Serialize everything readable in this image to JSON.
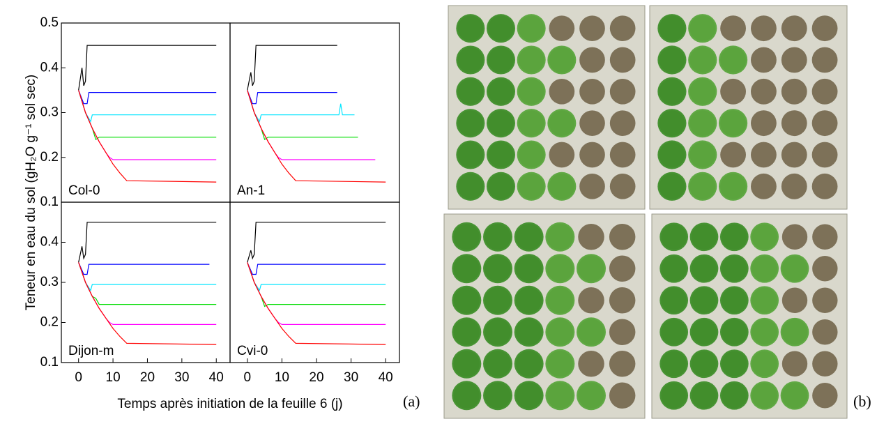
{
  "shared": {
    "ylabel": "Teneur  en eau du sol (gH₂O g⁻¹ sol sec)",
    "xlabel": "Temps après initiation de la feuille 6 (j)",
    "panel_a": "(a)",
    "panel_b": "(b)"
  },
  "chart_data": [
    {
      "type": "line",
      "title": "Col-0",
      "xlim": [
        -5,
        44
      ],
      "ylim": [
        0.1,
        0.5
      ],
      "yticks": [
        0.1,
        0.2,
        0.3,
        0.4,
        0.5
      ],
      "series": [
        {
          "color": "#000000",
          "x": [
            0,
            1,
            1.5,
            2,
            2.5,
            40
          ],
          "values": [
            0.35,
            0.4,
            0.36,
            0.37,
            0.45,
            0.45
          ]
        },
        {
          "color": "#0000ff",
          "x": [
            0,
            1.5,
            2.5,
            3,
            40
          ],
          "values": [
            0.35,
            0.32,
            0.32,
            0.345,
            0.345
          ]
        },
        {
          "color": "#00e5ff",
          "x": [
            0,
            2,
            3.5,
            4,
            40
          ],
          "values": [
            0.35,
            0.3,
            0.28,
            0.295,
            0.295
          ]
        },
        {
          "color": "#00dd00",
          "x": [
            0,
            2,
            4,
            5,
            6,
            40
          ],
          "values": [
            0.35,
            0.3,
            0.265,
            0.24,
            0.245,
            0.245
          ]
        },
        {
          "color": "#ff00ff",
          "x": [
            0,
            2,
            4,
            6,
            8,
            9,
            10,
            40
          ],
          "values": [
            0.35,
            0.3,
            0.265,
            0.235,
            0.21,
            0.2,
            0.195,
            0.195
          ]
        },
        {
          "color": "#ff0000",
          "x": [
            0,
            2,
            4,
            6,
            8,
            10,
            12,
            14,
            40
          ],
          "values": [
            0.35,
            0.3,
            0.265,
            0.235,
            0.21,
            0.185,
            0.165,
            0.148,
            0.145
          ]
        }
      ]
    },
    {
      "type": "line",
      "title": "An-1",
      "xlim": [
        -5,
        44
      ],
      "ylim": [
        0.1,
        0.5
      ],
      "series": [
        {
          "color": "#000000",
          "x": [
            0,
            1,
            1.5,
            2,
            2.5,
            26
          ],
          "values": [
            0.35,
            0.39,
            0.36,
            0.37,
            0.45,
            0.45
          ]
        },
        {
          "color": "#0000ff",
          "x": [
            0,
            1.5,
            2.5,
            3,
            26
          ],
          "values": [
            0.35,
            0.32,
            0.32,
            0.345,
            0.345
          ]
        },
        {
          "color": "#00e5ff",
          "x": [
            0,
            2,
            3.5,
            4,
            26.5,
            27,
            27.5,
            31
          ],
          "values": [
            0.35,
            0.3,
            0.28,
            0.295,
            0.295,
            0.32,
            0.295,
            0.295
          ]
        },
        {
          "color": "#00dd00",
          "x": [
            0,
            2,
            4,
            5,
            6,
            32
          ],
          "values": [
            0.35,
            0.3,
            0.265,
            0.24,
            0.245,
            0.245
          ]
        },
        {
          "color": "#ff00ff",
          "x": [
            0,
            2,
            4,
            6,
            8,
            9,
            10,
            37
          ],
          "values": [
            0.35,
            0.3,
            0.265,
            0.235,
            0.21,
            0.2,
            0.195,
            0.195
          ]
        },
        {
          "color": "#ff0000",
          "x": [
            0,
            2,
            4,
            6,
            8,
            10,
            12,
            14,
            40
          ],
          "values": [
            0.35,
            0.3,
            0.265,
            0.235,
            0.21,
            0.185,
            0.165,
            0.148,
            0.145
          ]
        }
      ]
    },
    {
      "type": "line",
      "title": "Dijon-m",
      "xlim": [
        -5,
        44
      ],
      "ylim": [
        0.1,
        0.5
      ],
      "yticks": [
        0.1,
        0.2,
        0.3,
        0.4
      ],
      "xticks": [
        0,
        10,
        20,
        30,
        40
      ],
      "series": [
        {
          "color": "#000000",
          "x": [
            0,
            1,
            1.5,
            2,
            2.5,
            40
          ],
          "values": [
            0.35,
            0.39,
            0.36,
            0.37,
            0.45,
            0.45
          ]
        },
        {
          "color": "#0000ff",
          "x": [
            0,
            1.5,
            2.5,
            3,
            38
          ],
          "values": [
            0.35,
            0.32,
            0.32,
            0.345,
            0.345
          ]
        },
        {
          "color": "#00e5ff",
          "x": [
            0,
            2,
            3.5,
            4,
            40
          ],
          "values": [
            0.35,
            0.3,
            0.28,
            0.295,
            0.295
          ]
        },
        {
          "color": "#00dd00",
          "x": [
            0,
            2,
            4,
            5,
            6,
            40
          ],
          "values": [
            0.35,
            0.3,
            0.265,
            0.26,
            0.245,
            0.245
          ]
        },
        {
          "color": "#ff00ff",
          "x": [
            0,
            2,
            4,
            6,
            8,
            9,
            10,
            40
          ],
          "values": [
            0.35,
            0.3,
            0.265,
            0.235,
            0.21,
            0.2,
            0.195,
            0.195
          ]
        },
        {
          "color": "#ff0000",
          "x": [
            0,
            2,
            4,
            6,
            8,
            10,
            12,
            14,
            40
          ],
          "values": [
            0.35,
            0.3,
            0.265,
            0.235,
            0.21,
            0.185,
            0.165,
            0.148,
            0.145
          ]
        }
      ]
    },
    {
      "type": "line",
      "title": "Cvi-0",
      "xlim": [
        -5,
        44
      ],
      "ylim": [
        0.1,
        0.5
      ],
      "xticks": [
        0,
        10,
        20,
        30,
        40
      ],
      "series": [
        {
          "color": "#000000",
          "x": [
            0,
            1,
            1.5,
            2,
            2.5,
            40
          ],
          "values": [
            0.35,
            0.38,
            0.36,
            0.37,
            0.45,
            0.45
          ]
        },
        {
          "color": "#0000ff",
          "x": [
            0,
            1.5,
            2.5,
            3,
            40
          ],
          "values": [
            0.35,
            0.32,
            0.32,
            0.345,
            0.345
          ]
        },
        {
          "color": "#00e5ff",
          "x": [
            0,
            2,
            3.5,
            4,
            40
          ],
          "values": [
            0.35,
            0.3,
            0.28,
            0.295,
            0.295
          ]
        },
        {
          "color": "#00dd00",
          "x": [
            0,
            2,
            4,
            5,
            6,
            40
          ],
          "values": [
            0.35,
            0.3,
            0.265,
            0.24,
            0.245,
            0.245
          ]
        },
        {
          "color": "#ff00ff",
          "x": [
            0,
            2,
            4,
            6,
            8,
            9,
            10,
            40
          ],
          "values": [
            0.35,
            0.3,
            0.265,
            0.235,
            0.21,
            0.2,
            0.195,
            0.195
          ]
        },
        {
          "color": "#ff0000",
          "x": [
            0,
            2,
            4,
            6,
            8,
            10,
            12,
            14,
            40
          ],
          "values": [
            0.35,
            0.3,
            0.265,
            0.235,
            0.21,
            0.185,
            0.165,
            0.148,
            0.145
          ]
        }
      ]
    }
  ]
}
